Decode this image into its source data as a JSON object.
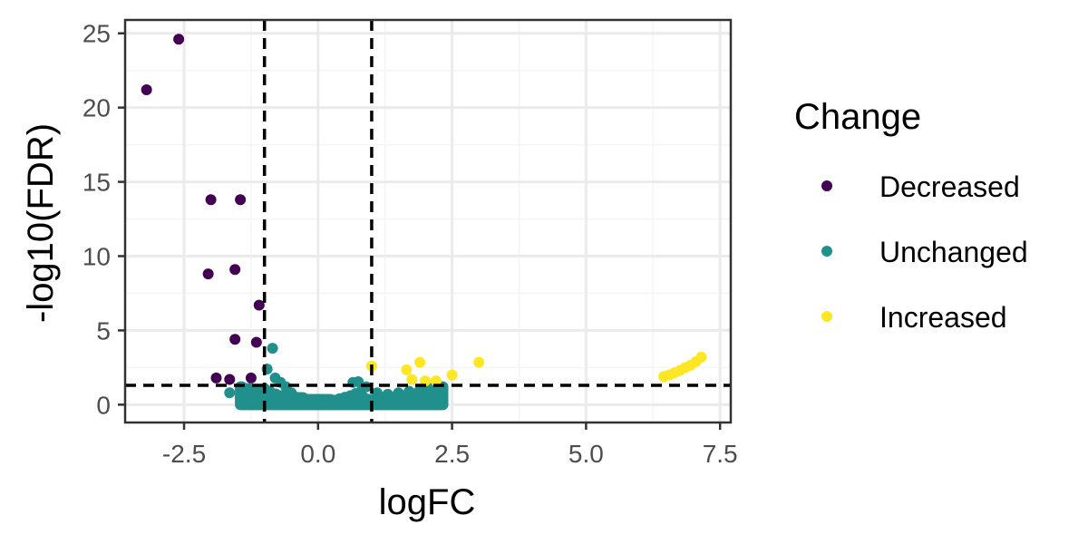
{
  "colors": {
    "Decreased": "#440154",
    "Unchanged": "#21908C",
    "Increased": "#FDE725",
    "grid_major": "#EBEBEB",
    "grid_minor": "#F5F5F5",
    "panel_border": "#333333",
    "threshold_line": "#000000"
  },
  "chart_data": {
    "type": "scatter",
    "title": "",
    "xlabel": "logFC",
    "ylabel": "-log10(FDR)",
    "xlim": [
      -3.6,
      7.7
    ],
    "ylim": [
      -1.2,
      25.9
    ],
    "x_ticks": [
      -2.5,
      0.0,
      2.5,
      5.0,
      7.5
    ],
    "x_tick_labels": [
      "-2.5",
      "0.0",
      "2.5",
      "5.0",
      "7.5"
    ],
    "y_ticks": [
      0,
      5,
      10,
      15,
      20,
      25
    ],
    "y_tick_labels": [
      "0",
      "5",
      "10",
      "15",
      "20",
      "25"
    ],
    "grid": true,
    "thresholds": {
      "vlines": [
        -1,
        1
      ],
      "hline": 1.3
    },
    "legend": {
      "title": "Change",
      "position": "right",
      "entries": [
        "Decreased",
        "Unchanged",
        "Increased"
      ]
    },
    "series": [
      {
        "name": "Decreased",
        "points": [
          [
            -3.2,
            21.2
          ],
          [
            -2.6,
            24.6
          ],
          [
            -2.0,
            13.8
          ],
          [
            -1.45,
            13.8
          ],
          [
            -2.05,
            8.8
          ],
          [
            -1.55,
            9.1
          ],
          [
            -1.1,
            6.7
          ],
          [
            -1.55,
            4.4
          ],
          [
            -1.15,
            4.2
          ],
          [
            -1.9,
            1.8
          ],
          [
            -1.65,
            1.7
          ],
          [
            -1.25,
            1.8
          ]
        ]
      },
      {
        "name": "Unchanged",
        "points": [
          [
            -0.85,
            3.8
          ],
          [
            -0.95,
            2.4
          ],
          [
            -1.65,
            0.8
          ],
          [
            -1.4,
            1.0
          ],
          [
            -1.0,
            1.1
          ],
          [
            -0.9,
            0.9
          ],
          [
            -0.8,
            1.8
          ],
          [
            -0.7,
            1.5
          ],
          [
            -0.6,
            1.2
          ],
          [
            -0.5,
            0.8
          ],
          [
            -0.4,
            0.5
          ],
          [
            -0.3,
            0.35
          ],
          [
            -0.2,
            0.2
          ],
          [
            -0.1,
            0.1
          ],
          [
            0.0,
            0.05
          ],
          [
            0.1,
            0.1
          ],
          [
            0.2,
            0.2
          ],
          [
            0.3,
            0.3
          ],
          [
            0.4,
            0.4
          ],
          [
            0.5,
            0.5
          ],
          [
            0.6,
            0.6
          ],
          [
            0.7,
            0.75
          ],
          [
            0.8,
            0.9
          ],
          [
            0.9,
            1.2
          ],
          [
            0.65,
            1.5
          ],
          [
            0.75,
            1.55
          ],
          [
            1.1,
            0.8
          ],
          [
            1.3,
            0.7
          ],
          [
            1.5,
            0.8
          ],
          [
            1.7,
            0.9
          ],
          [
            1.9,
            1.0
          ],
          [
            2.1,
            1.1
          ],
          [
            2.3,
            1.2
          ],
          [
            -0.75,
            0.6
          ],
          [
            -0.55,
            0.4
          ],
          [
            0.85,
            0.5
          ],
          [
            1.2,
            0.5
          ]
        ],
        "bands": [
          {
            "x_from": -1.45,
            "x_to": 2.35,
            "y_low": 0.0,
            "y_high_at_ends": 1.25,
            "y_high_at_center": 0.35
          }
        ]
      },
      {
        "name": "Increased",
        "points": [
          [
            1.0,
            2.6
          ],
          [
            1.65,
            2.35
          ],
          [
            1.9,
            2.85
          ],
          [
            1.75,
            1.7
          ],
          [
            2.0,
            1.6
          ],
          [
            2.2,
            1.6
          ],
          [
            2.5,
            2.0
          ],
          [
            3.0,
            2.85
          ],
          [
            6.45,
            1.9
          ],
          [
            6.55,
            2.0
          ],
          [
            6.65,
            2.15
          ],
          [
            6.75,
            2.3
          ],
          [
            6.85,
            2.5
          ],
          [
            6.95,
            2.65
          ],
          [
            7.05,
            2.9
          ],
          [
            7.15,
            3.2
          ]
        ]
      }
    ]
  }
}
